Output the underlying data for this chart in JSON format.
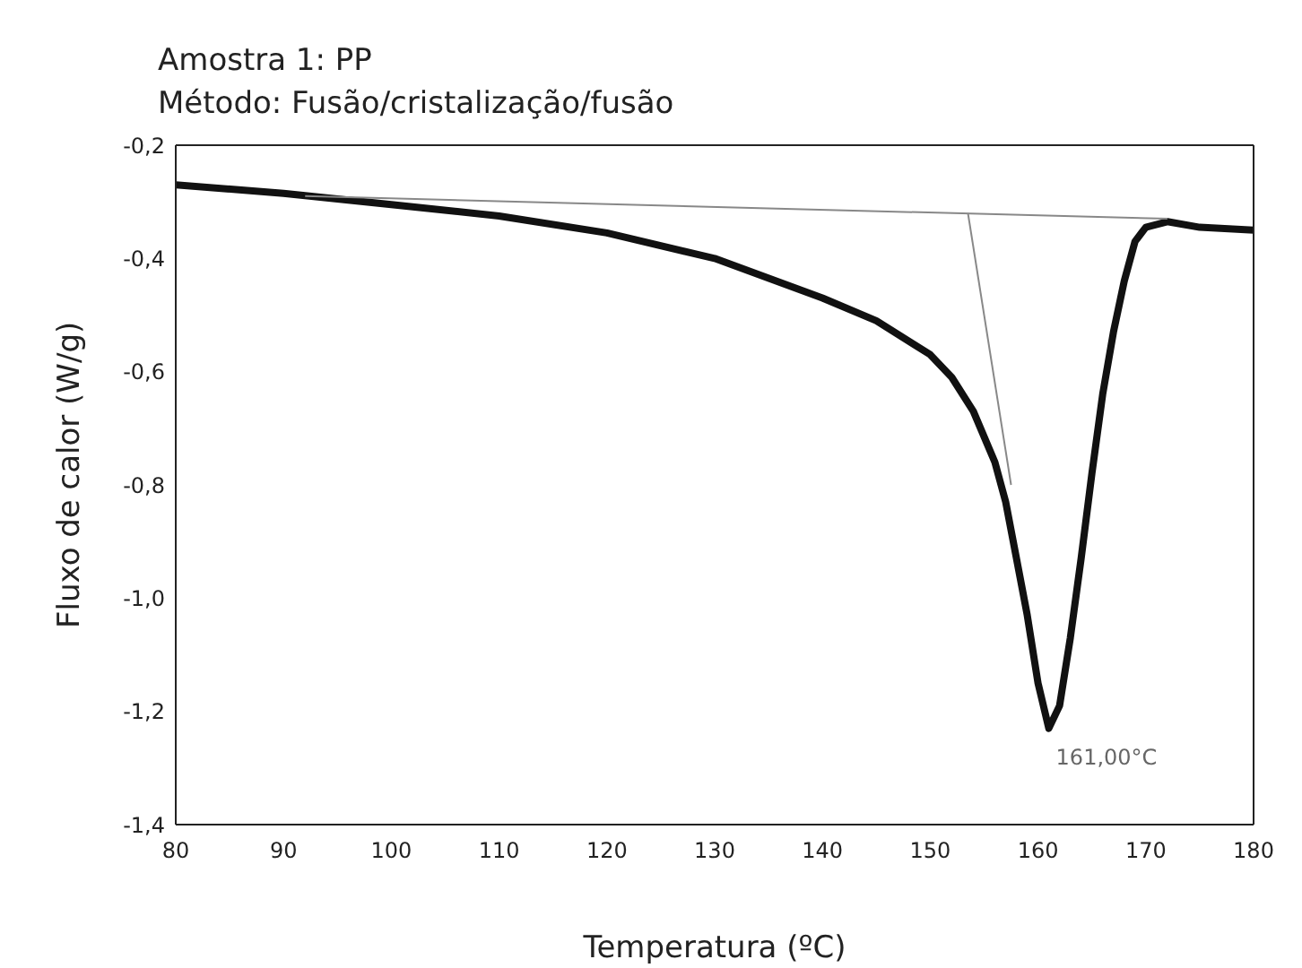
{
  "chart_data": {
    "type": "line",
    "title": "Amostra 1: PP",
    "subtitle": "Método: Fusão/cristalização/fusão",
    "xlabel": "Temperatura (ºC)",
    "ylabel": "Fluxo de calor (W/g)",
    "series": [
      {
        "color": "#111111",
        "x": [
          80,
          90,
          100,
          110,
          120,
          130,
          140,
          145,
          150,
          152,
          154,
          156,
          157,
          158,
          159,
          160,
          161,
          162,
          163,
          164,
          165,
          166,
          167,
          168,
          169,
          170,
          172,
          175,
          180
        ],
        "values": [
          -0.27,
          -0.285,
          -0.305,
          -0.325,
          -0.355,
          -0.4,
          -0.47,
          -0.51,
          -0.57,
          -0.61,
          -0.67,
          -0.76,
          -0.83,
          -0.93,
          -1.03,
          -1.15,
          -1.23,
          -1.19,
          -1.07,
          -0.93,
          -0.78,
          -0.64,
          -0.53,
          -0.44,
          -0.37,
          -0.345,
          -0.335,
          -0.345,
          -0.35
        ]
      },
      {
        "color": "#888888",
        "x": [
          92,
          172
        ],
        "values": [
          -0.29,
          -0.33
        ]
      },
      {
        "color": "#888888",
        "x": [
          153.5,
          157.5
        ],
        "values": [
          -0.32,
          -0.8
        ]
      }
    ],
    "xlim": [
      80,
      180
    ],
    "ylim": [
      -1.4,
      -0.2
    ],
    "xticks": [
      80,
      90,
      100,
      110,
      120,
      130,
      140,
      150,
      160,
      170,
      180
    ],
    "yticks": [
      {
        "value": -1.4,
        "label": "-1,4"
      },
      {
        "value": -1.2,
        "label": "-1,2"
      },
      {
        "value": -1.0,
        "label": "-1,0"
      },
      {
        "value": -0.8,
        "label": "-0,8"
      },
      {
        "value": -0.6,
        "label": "-0,6"
      },
      {
        "value": -0.4,
        "label": "-0,4"
      },
      {
        "value": -0.2,
        "label": "-0,2"
      }
    ],
    "annotations": [
      {
        "text": "161,00°C",
        "x": 161,
        "y": -1.23
      }
    ],
    "grid": false,
    "marker": "none",
    "line_style": "solid"
  }
}
